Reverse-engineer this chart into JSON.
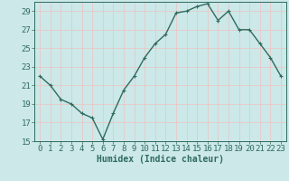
{
  "x": [
    0,
    1,
    2,
    3,
    4,
    5,
    6,
    7,
    8,
    9,
    10,
    11,
    12,
    13,
    14,
    15,
    16,
    17,
    18,
    19,
    20,
    21,
    22,
    23
  ],
  "y": [
    22.0,
    21.0,
    19.5,
    19.0,
    18.0,
    17.5,
    15.2,
    18.0,
    20.5,
    22.0,
    24.0,
    25.5,
    26.5,
    28.8,
    29.0,
    29.5,
    29.8,
    28.0,
    29.0,
    27.0,
    27.0,
    25.5,
    24.0,
    22.0
  ],
  "line_color": "#2e6b5e",
  "marker": "+",
  "marker_size": 3,
  "bg_color": "#cce8e8",
  "grid_color": "#e8c8c8",
  "xlabel": "Humidex (Indice chaleur)",
  "xlim": [
    -0.5,
    23.5
  ],
  "ylim": [
    15,
    30
  ],
  "yticks": [
    15,
    17,
    19,
    21,
    23,
    25,
    27,
    29
  ],
  "xticks": [
    0,
    1,
    2,
    3,
    4,
    5,
    6,
    7,
    8,
    9,
    10,
    11,
    12,
    13,
    14,
    15,
    16,
    17,
    18,
    19,
    20,
    21,
    22,
    23
  ],
  "xlabel_fontsize": 7,
  "tick_fontsize": 6.5,
  "line_width": 1.0
}
